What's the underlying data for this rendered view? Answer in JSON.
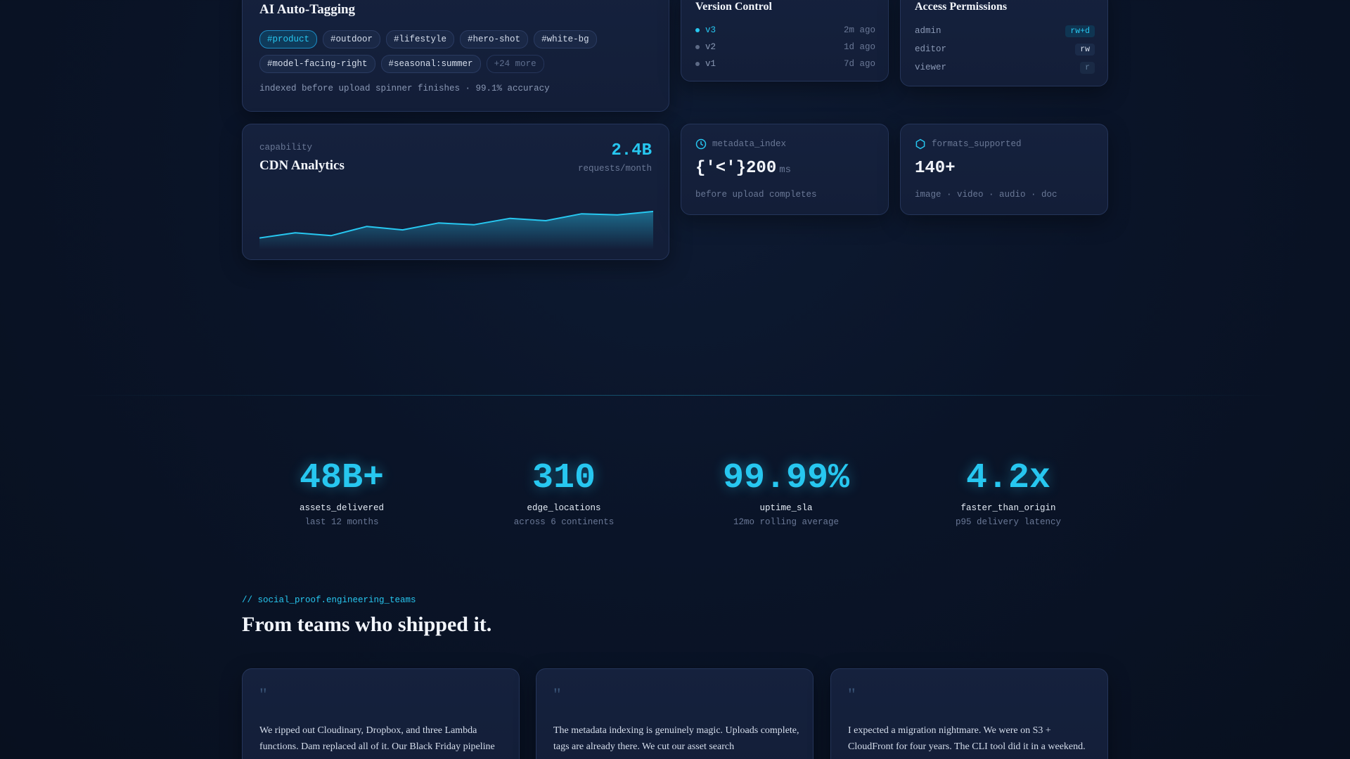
{
  "tagging": {
    "title": "AI Auto-Tagging",
    "tags": [
      "#product",
      "#outdoor",
      "#lifestyle",
      "#hero-shot",
      "#white-bg",
      "#model-facing-right",
      "#seasonal:summer"
    ],
    "more": "+24 more",
    "footer": "indexed before upload spinner finishes · 99.1% accuracy"
  },
  "version": {
    "title": "Version Control",
    "rows": [
      {
        "label": "v3",
        "time": "2m ago"
      },
      {
        "label": "v2",
        "time": "1d ago"
      },
      {
        "label": "v1",
        "time": "7d ago"
      }
    ]
  },
  "access": {
    "title": "Access Permissions",
    "rows": [
      {
        "role": "admin",
        "perm": "rw+d"
      },
      {
        "role": "editor",
        "perm": "rw"
      },
      {
        "role": "viewer",
        "perm": "r"
      }
    ]
  },
  "cdn": {
    "kicker": "capability",
    "title": "CDN Analytics",
    "value": "2.4B",
    "unit": "requests/month",
    "accent": "#27c7f0"
  },
  "chart_data": {
    "type": "area",
    "title": "",
    "xlabel": "",
    "ylabel": "",
    "x": [
      1,
      2,
      3,
      4,
      5,
      6,
      7,
      8,
      9,
      10,
      11,
      12
    ],
    "values": [
      20,
      29,
      24,
      40,
      34,
      46,
      43,
      54,
      50,
      62,
      60,
      66
    ],
    "ylim": [
      0,
      100
    ],
    "grid": false
  },
  "metadata_card": {
    "icon": "clock-icon",
    "label": "metadata_index",
    "value": "{'<'}200",
    "unit": "ms",
    "footer": "before upload completes"
  },
  "formats_card": {
    "icon": "hexagon-icon",
    "label": "formats_supported",
    "value": "140+",
    "footer": "image · video · audio · doc"
  },
  "stats": [
    {
      "value": "48B+",
      "label": "assets_delivered",
      "sub": "last 12 months"
    },
    {
      "value": "310",
      "label": "edge_locations",
      "sub": "across 6 continents"
    },
    {
      "value": "99.99%",
      "label": "uptime_sla",
      "sub": "12mo rolling average"
    },
    {
      "value": "4.2x",
      "label": "faster_than_origin",
      "sub": "p95 delivery latency"
    }
  ],
  "social": {
    "kicker": "// social_proof.engineering_teams",
    "heading": "From teams who shipped it.",
    "quote_mark": "\"",
    "testimonials": [
      {
        "text": "We ripped out Cloudinary, Dropbox, and three Lambda functions. Dam replaced all of it. Our Black Friday pipeline"
      },
      {
        "text": "The metadata indexing is genuinely magic. Uploads complete, tags are already there. We cut our asset search"
      },
      {
        "text": "I expected a migration nightmare. We were on S3 + CloudFront for four years. The CLI tool did it in a weekend."
      }
    ]
  }
}
